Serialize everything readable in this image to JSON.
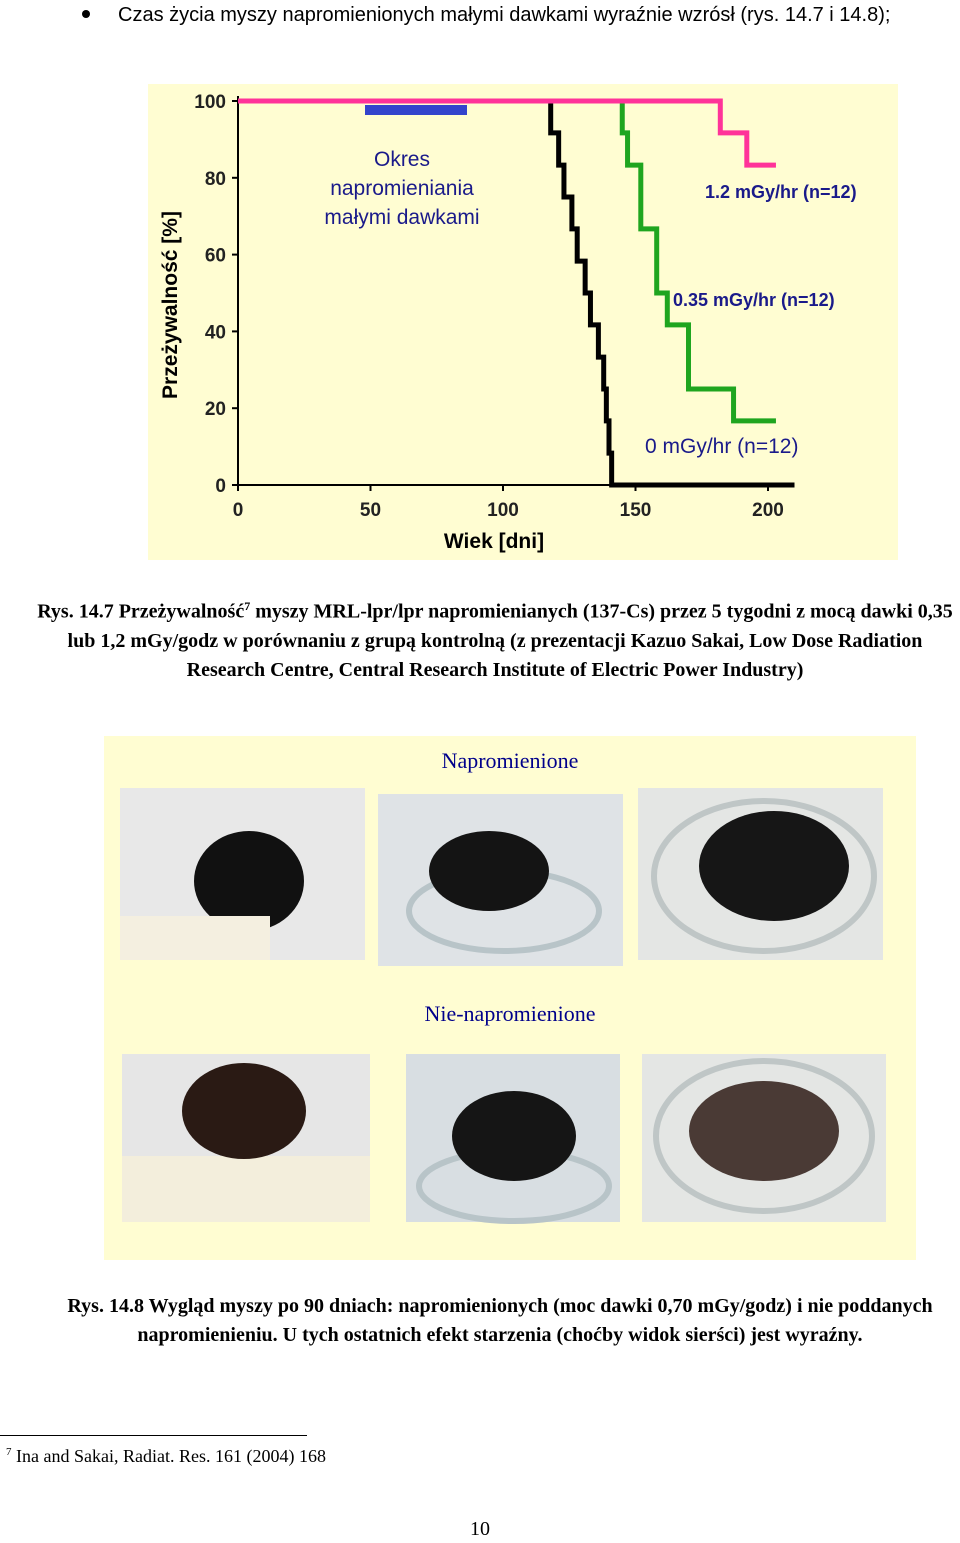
{
  "bullet": "Czas życia myszy napromienionych małymi dawkami wyraźnie wzrósł (rys. 14.7 i 14.8);",
  "chart_data": {
    "type": "line",
    "y_label": "Przeżywalność [%]",
    "x_label": "Wiek [dni]",
    "annotation": [
      "Okres",
      "napromieniania",
      "małymi dawkami"
    ],
    "xlim": [
      0,
      210
    ],
    "xticks": [
      0,
      50,
      100,
      150,
      200
    ],
    "ylim": [
      0,
      100
    ],
    "yticks": [
      0,
      20,
      40,
      60,
      80,
      100
    ],
    "series": [
      {
        "name": "1.2 mGy/hr (n=12)",
        "color": "#ff3399",
        "x": [
          0,
          182,
          182,
          192,
          192,
          203
        ],
        "values": [
          100,
          100,
          91.7,
          91.7,
          83.3,
          83.3
        ]
      },
      {
        "name": "0.35 mGy/hr (n=12)",
        "color": "#1fa51f",
        "x": [
          0,
          145,
          145,
          147,
          147,
          152,
          152,
          158,
          158,
          162,
          162,
          170,
          170,
          187,
          187,
          203
        ],
        "values": [
          100,
          100,
          91.7,
          91.7,
          83.3,
          83.3,
          66.7,
          66.7,
          50,
          50,
          41.7,
          41.7,
          25,
          25,
          16.7,
          16.7
        ]
      },
      {
        "name": "0 mGy/hr (n=12)",
        "color": "#000000",
        "x": [
          0,
          118,
          118,
          121,
          121,
          123,
          123,
          126,
          126,
          128,
          128,
          131,
          131,
          133,
          133,
          136,
          136,
          138,
          138,
          139,
          139,
          140,
          140,
          141,
          141,
          210
        ],
        "values": [
          100,
          100,
          91.7,
          91.7,
          83.3,
          83.3,
          75,
          75,
          66.7,
          66.7,
          58.3,
          58.3,
          50,
          50,
          41.7,
          41.7,
          33.3,
          33.3,
          25,
          25,
          16.7,
          16.7,
          8.3,
          8.3,
          0,
          0
        ]
      }
    ]
  },
  "caption_1": {
    "lead": "Rys. 14.7 Przeżywalność",
    "footnote_ref": "7",
    "text": "myszy MRL-lpr/lpr napromienianych (137-Cs) przez 5 tygodni z mocą dawki 0,35 lub 1,2 mGy/godz w porównaniu z grupą kontrolną (z prezentacji Kazuo Sakai, Low Dose Radiation Research Centre, Central Research Institute of Electric Power Industry)"
  },
  "photos": {
    "irradiated_title": "Napromienione",
    "control_title": "Nie-napromienione"
  },
  "caption_2": "Rys. 14.8 Wygląd myszy po 90 dniach: napromienionych (moc dawki 0,70 mGy/godz) i nie poddanych napromienieniu. U tych ostatnich efekt starzenia (choćby widok sierści) jest wyraźny.",
  "footnote": {
    "marker": "7",
    "text": "Ina and Sakai, Radiat. Res. 161 (2004) 168"
  },
  "page_number": "10"
}
